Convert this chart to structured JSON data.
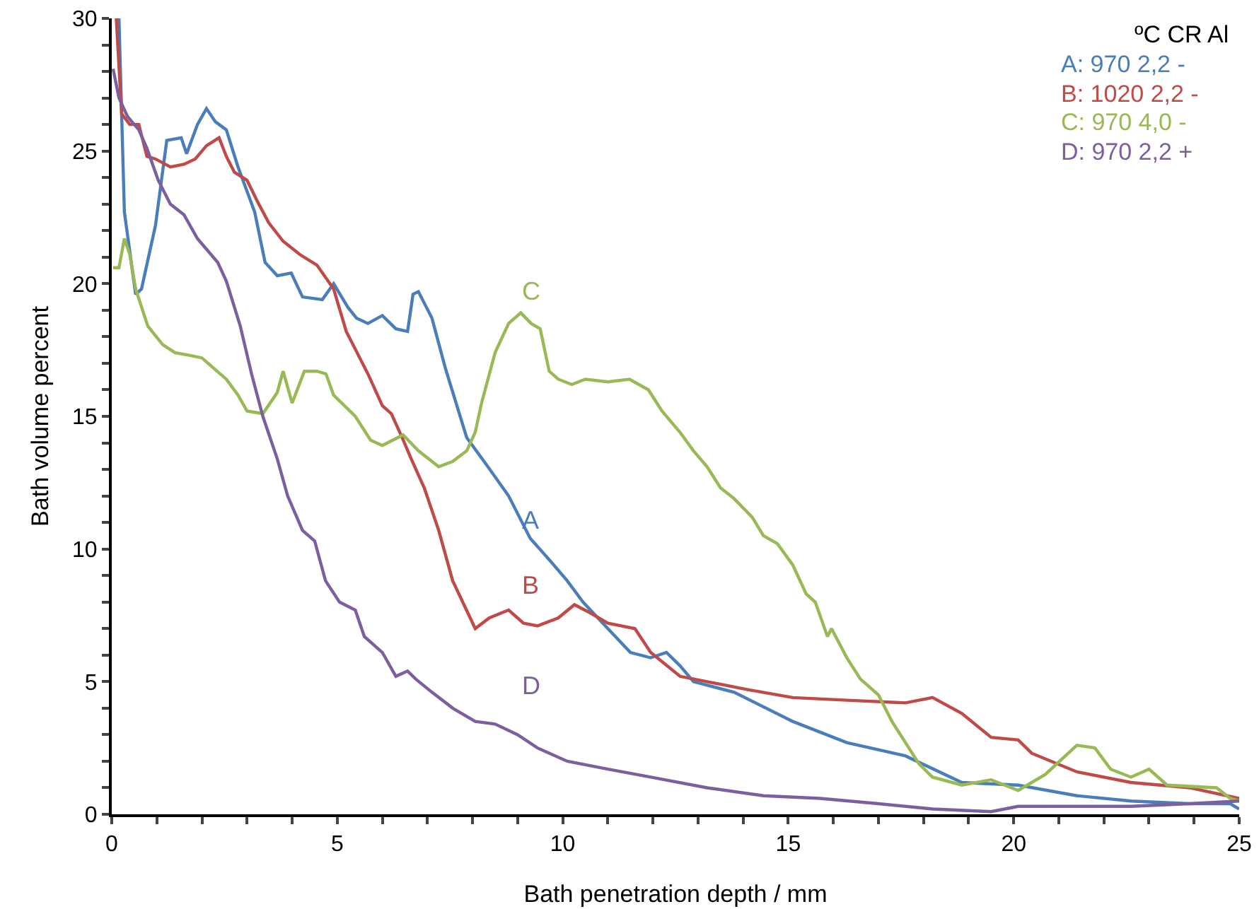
{
  "chart_data": {
    "type": "line",
    "xlabel": "Bath penetration depth / mm",
    "ylabel": "Bath volume percent",
    "grid": false,
    "marker": "none",
    "line_style": "solid",
    "xlim": [
      0,
      25
    ],
    "ylim": [
      0,
      30
    ],
    "xticks": [
      0,
      {
        "value": 1,
        "label": null
      },
      {
        "value": 2,
        "label": null
      },
      {
        "value": 3,
        "label": null
      },
      {
        "value": 4,
        "label": null
      },
      5,
      {
        "value": 6,
        "label": null
      },
      {
        "value": 7,
        "label": null
      },
      {
        "value": 8,
        "label": null
      },
      {
        "value": 9,
        "label": null
      },
      10,
      {
        "value": 11,
        "label": null
      },
      {
        "value": 12,
        "label": null
      },
      {
        "value": 13,
        "label": null
      },
      {
        "value": 14,
        "label": null
      },
      15,
      {
        "value": 16,
        "label": null
      },
      {
        "value": 17,
        "label": null
      },
      {
        "value": 18,
        "label": null
      },
      {
        "value": 19,
        "label": null
      },
      20,
      {
        "value": 21,
        "label": null
      },
      {
        "value": 22,
        "label": null
      },
      {
        "value": 23,
        "label": null
      },
      {
        "value": 24,
        "label": null
      },
      25
    ],
    "yticks": [
      0,
      {
        "value": 1,
        "label": null
      },
      {
        "value": 2,
        "label": null
      },
      {
        "value": 3,
        "label": null
      },
      {
        "value": 4,
        "label": null
      },
      5,
      {
        "value": 6,
        "label": null
      },
      {
        "value": 7,
        "label": null
      },
      {
        "value": 8,
        "label": null
      },
      {
        "value": 9,
        "label": null
      },
      10,
      {
        "value": 11,
        "label": null
      },
      {
        "value": 12,
        "label": null
      },
      {
        "value": 13,
        "label": null
      },
      {
        "value": 14,
        "label": null
      },
      15,
      {
        "value": 16,
        "label": null
      },
      {
        "value": 17,
        "label": null
      },
      {
        "value": 18,
        "label": null
      },
      {
        "value": 19,
        "label": null
      },
      20,
      {
        "value": 21,
        "label": null
      },
      {
        "value": 22,
        "label": null
      },
      {
        "value": 23,
        "label": null
      },
      {
        "value": 24,
        "label": null
      },
      25,
      {
        "value": 26,
        "label": null
      },
      {
        "value": 27,
        "label": null
      },
      {
        "value": 28,
        "label": null
      },
      {
        "value": 29,
        "label": null
      },
      30
    ],
    "series": [
      {
        "color": "#4a7ebb",
        "x": [
          0.16,
          0.28,
          0.53,
          0.66,
          0.97,
          1.22,
          1.54,
          1.66,
          1.9,
          2.1,
          2.3,
          2.54,
          2.8,
          3.17,
          3.4,
          3.67,
          3.98,
          4.23,
          4.67,
          4.92,
          5.24,
          5.43,
          5.68,
          6.0,
          6.3,
          6.56,
          6.68,
          6.8,
          7.1,
          7.4,
          7.87,
          8.34,
          8.8,
          9.28,
          9.75,
          10.1,
          10.45,
          11.0,
          11.5,
          11.95,
          12.3,
          12.6,
          12.9,
          13.8,
          15.1,
          16.3,
          17.6,
          18.85,
          20.1,
          21.4,
          22.6,
          23.9,
          24.8,
          25
        ],
        "values": [
          30,
          22.7,
          19.6,
          19.8,
          22.2,
          25.4,
          25.5,
          24.9,
          26.0,
          26.6,
          26.1,
          25.8,
          24.4,
          22.7,
          20.8,
          20.3,
          20.4,
          19.5,
          19.4,
          20.0,
          19.1,
          18.7,
          18.5,
          18.8,
          18.3,
          18.2,
          19.6,
          19.7,
          18.7,
          16.8,
          14.2,
          13.1,
          12.0,
          10.4,
          9.5,
          8.8,
          8.0,
          7.0,
          6.1,
          5.9,
          6.1,
          5.6,
          5.0,
          4.6,
          3.5,
          2.7,
          2.2,
          1.2,
          1.1,
          0.7,
          0.5,
          0.4,
          0.4,
          0.2
        ]
      },
      {
        "color": "#be4b48",
        "x": [
          0.1,
          0.22,
          0.4,
          0.6,
          0.78,
          0.97,
          1.3,
          1.6,
          1.85,
          2.1,
          2.38,
          2.54,
          2.72,
          3.0,
          3.23,
          3.48,
          3.8,
          4.17,
          4.55,
          4.92,
          5.2,
          5.68,
          6.0,
          6.2,
          6.44,
          6.64,
          6.93,
          7.25,
          7.56,
          8.06,
          8.37,
          8.8,
          9.13,
          9.44,
          9.9,
          10.26,
          10.6,
          11.0,
          11.6,
          11.95,
          12.6,
          13.2,
          14.1,
          15.1,
          16.3,
          17.6,
          18.2,
          18.85,
          19.5,
          20.1,
          20.4,
          21.4,
          22.6,
          23.9,
          25
        ],
        "values": [
          30,
          26.4,
          26.0,
          26.0,
          24.8,
          24.7,
          24.4,
          24.5,
          24.7,
          25.2,
          25.5,
          24.8,
          24.2,
          23.9,
          23.1,
          22.3,
          21.6,
          21.1,
          20.7,
          19.8,
          18.2,
          16.6,
          15.4,
          15.1,
          14.2,
          13.4,
          12.3,
          10.7,
          8.8,
          7.0,
          7.4,
          7.7,
          7.2,
          7.1,
          7.4,
          7.9,
          7.6,
          7.2,
          7.0,
          6.1,
          5.2,
          5.0,
          4.7,
          4.4,
          4.3,
          4.2,
          4.4,
          3.8,
          2.9,
          2.8,
          2.3,
          1.6,
          1.2,
          1.0,
          0.6
        ]
      },
      {
        "color": "#98b954",
        "x": [
          0.03,
          0.16,
          0.28,
          0.4,
          0.53,
          0.8,
          1.13,
          1.4,
          1.72,
          2.0,
          2.2,
          2.54,
          2.8,
          3.0,
          3.35,
          3.67,
          3.8,
          4.0,
          4.27,
          4.55,
          4.75,
          4.92,
          5.4,
          5.74,
          6.0,
          6.46,
          6.8,
          7.25,
          7.56,
          7.87,
          8.06,
          8.2,
          8.5,
          8.8,
          9.07,
          9.3,
          9.5,
          9.7,
          9.9,
          10.2,
          10.5,
          11.0,
          11.48,
          11.9,
          12.2,
          12.6,
          12.9,
          13.2,
          13.5,
          13.8,
          14.2,
          14.45,
          14.76,
          15.1,
          15.4,
          15.6,
          15.87,
          15.96,
          16.3,
          16.6,
          17.0,
          17.3,
          17.6,
          17.9,
          18.2,
          18.85,
          19.5,
          20.1,
          20.7,
          21.4,
          21.8,
          22.15,
          22.6,
          23.0,
          23.4,
          24.5,
          24.8,
          25
        ],
        "values": [
          20.6,
          20.6,
          21.7,
          21.1,
          19.8,
          18.4,
          17.7,
          17.4,
          17.3,
          17.2,
          16.9,
          16.4,
          15.8,
          15.2,
          15.1,
          15.9,
          16.7,
          15.5,
          16.7,
          16.7,
          16.6,
          15.8,
          15.0,
          14.1,
          13.9,
          14.3,
          13.7,
          13.1,
          13.3,
          13.7,
          14.4,
          15.5,
          17.4,
          18.5,
          18.9,
          18.5,
          18.3,
          16.7,
          16.4,
          16.2,
          16.4,
          16.3,
          16.4,
          16.0,
          15.2,
          14.4,
          13.7,
          13.1,
          12.3,
          11.9,
          11.2,
          10.5,
          10.2,
          9.4,
          8.3,
          8.0,
          6.7,
          7.0,
          5.9,
          5.1,
          4.5,
          3.5,
          2.7,
          1.9,
          1.4,
          1.1,
          1.3,
          0.9,
          1.5,
          2.6,
          2.5,
          1.7,
          1.4,
          1.7,
          1.1,
          1.0,
          0.6,
          0.5
        ]
      },
      {
        "color": "#7d5fa0",
        "x": [
          0.03,
          0.16,
          0.35,
          0.6,
          0.78,
          1.03,
          1.3,
          1.6,
          1.9,
          2.1,
          2.35,
          2.54,
          2.85,
          3.1,
          3.35,
          3.67,
          3.9,
          4.23,
          4.5,
          4.74,
          5.05,
          5.4,
          5.6,
          6.0,
          6.3,
          6.56,
          6.74,
          7.1,
          7.56,
          8.06,
          8.5,
          9.0,
          9.44,
          10.1,
          11.0,
          11.95,
          13.2,
          14.45,
          15.7,
          17.0,
          18.2,
          19.5,
          20.1,
          21.4,
          22.6,
          23.9,
          25
        ],
        "values": [
          28.1,
          27.0,
          26.3,
          25.8,
          25.1,
          23.9,
          23.0,
          22.6,
          21.7,
          21.3,
          20.8,
          20.1,
          18.4,
          16.6,
          15.0,
          13.4,
          12.0,
          10.7,
          10.3,
          8.8,
          8.0,
          7.7,
          6.7,
          6.1,
          5.2,
          5.4,
          5.1,
          4.6,
          4.0,
          3.5,
          3.4,
          3.0,
          2.5,
          2.0,
          1.7,
          1.4,
          1.0,
          0.7,
          0.6,
          0.4,
          0.2,
          0.1,
          0.3,
          0.3,
          0.3,
          0.4,
          0.5
        ]
      }
    ],
    "annotations": [
      "ºC CR Al",
      "A: 970 2,2 -",
      "B: 1020 2,2 -",
      "C: 970 4,0 -",
      "D: 970 2,2 +",
      "A",
      "B",
      "C",
      "D"
    ]
  }
}
